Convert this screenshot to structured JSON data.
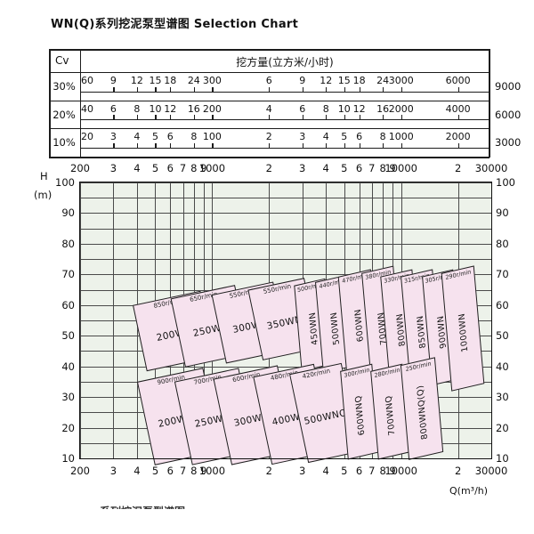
{
  "title": "WN(Q)系列挖泥泵型谱图  Selection Chart",
  "bottom_partial": "系列挖泥泵型谱图",
  "colors": {
    "panel_fill": "#f6e2ee",
    "panel_border": "#1f1f1f",
    "plot_bg": "#edf2ea",
    "grid": "#4a4a4a",
    "ink": "#111111"
  },
  "table": {
    "col_header": "Cv",
    "main_header": "挖方量(立方米/小时)",
    "rows": [
      {
        "label": "30%",
        "outside": "9000",
        "cells": [
          {
            "q": 200,
            "t": "60"
          },
          {
            "q": 300,
            "t": "9"
          },
          {
            "q": 400,
            "t": "12"
          },
          {
            "q": 500,
            "t": "15"
          },
          {
            "q": 600,
            "t": "18"
          },
          {
            "q": 800,
            "t": "24"
          },
          {
            "q": 1000,
            "t": "300"
          },
          {
            "q": 2000,
            "t": "6"
          },
          {
            "q": 3000,
            "t": "9"
          },
          {
            "q": 4000,
            "t": "12"
          },
          {
            "q": 5000,
            "t": "15"
          },
          {
            "q": 6000,
            "t": "18"
          },
          {
            "q": 8000,
            "t": "24"
          },
          {
            "q": 10000,
            "t": "3000"
          },
          {
            "q": 20000,
            "t": "6000"
          }
        ]
      },
      {
        "label": "20%",
        "outside": "6000",
        "cells": [
          {
            "q": 200,
            "t": "40"
          },
          {
            "q": 300,
            "t": "6"
          },
          {
            "q": 400,
            "t": "8"
          },
          {
            "q": 500,
            "t": "10"
          },
          {
            "q": 600,
            "t": "12"
          },
          {
            "q": 800,
            "t": "16"
          },
          {
            "q": 1000,
            "t": "200"
          },
          {
            "q": 2000,
            "t": "4"
          },
          {
            "q": 3000,
            "t": "6"
          },
          {
            "q": 4000,
            "t": "8"
          },
          {
            "q": 5000,
            "t": "10"
          },
          {
            "q": 6000,
            "t": "12"
          },
          {
            "q": 8000,
            "t": "16"
          },
          {
            "q": 10000,
            "t": "2000"
          },
          {
            "q": 20000,
            "t": "4000"
          }
        ]
      },
      {
        "label": "10%",
        "outside": "3000",
        "cells": [
          {
            "q": 200,
            "t": "20"
          },
          {
            "q": 300,
            "t": "3"
          },
          {
            "q": 400,
            "t": "4"
          },
          {
            "q": 500,
            "t": "5"
          },
          {
            "q": 600,
            "t": "6"
          },
          {
            "q": 800,
            "t": "8"
          },
          {
            "q": 1000,
            "t": "100"
          },
          {
            "q": 2000,
            "t": "2"
          },
          {
            "q": 3000,
            "t": "3"
          },
          {
            "q": 4000,
            "t": "4"
          },
          {
            "q": 5000,
            "t": "5"
          },
          {
            "q": 6000,
            "t": "6"
          },
          {
            "q": 8000,
            "t": "8"
          },
          {
            "q": 10000,
            "t": "1000"
          },
          {
            "q": 20000,
            "t": "2000"
          }
        ]
      }
    ]
  },
  "axes": {
    "x_label": "Q(m³/h)",
    "y_label_line1": "H",
    "y_label_line2": "(m)",
    "x_ticks": [
      {
        "q": 200,
        "t": "200"
      },
      {
        "q": 300,
        "t": "3"
      },
      {
        "q": 400,
        "t": "4"
      },
      {
        "q": 500,
        "t": "5"
      },
      {
        "q": 600,
        "t": "6"
      },
      {
        "q": 700,
        "t": "7"
      },
      {
        "q": 800,
        "t": "8"
      },
      {
        "q": 900,
        "t": "9"
      },
      {
        "q": 1000,
        "t": "1000"
      },
      {
        "q": 2000,
        "t": "2"
      },
      {
        "q": 3000,
        "t": "3"
      },
      {
        "q": 4000,
        "t": "4"
      },
      {
        "q": 5000,
        "t": "5"
      },
      {
        "q": 6000,
        "t": "6"
      },
      {
        "q": 7000,
        "t": "7"
      },
      {
        "q": 8000,
        "t": "8"
      },
      {
        "q": 9000,
        "t": "9"
      },
      {
        "q": 10000,
        "t": "10000"
      },
      {
        "q": 20000,
        "t": "2"
      },
      {
        "q": 30000,
        "t": "30000"
      }
    ],
    "y_ticks": [
      "100",
      "90",
      "80",
      "70",
      "60",
      "50",
      "40",
      "30",
      "20",
      "10"
    ]
  },
  "chart_data": {
    "type": "area",
    "title": "WN(Q)系列挖泥泵型谱图 Selection Chart",
    "x_axis": {
      "label": "Q(m³/h)",
      "scale": "log",
      "range": [
        200,
        30000
      ]
    },
    "y_axis": {
      "label": "H (m)",
      "scale": "linear",
      "range": [
        10,
        100
      ],
      "minor_step": 5
    },
    "legend_position": "none",
    "grid": true,
    "series": [
      {
        "model": "200WN",
        "speed": "850r/min",
        "q_range": [
          400,
          950
        ],
        "h_range": [
          41,
          63
        ],
        "narrow": false,
        "row": "WN"
      },
      {
        "model": "250WN",
        "speed": "650r/min",
        "q_range": [
          640,
          1450
        ],
        "h_range": [
          42,
          65
        ],
        "narrow": false,
        "row": "WN"
      },
      {
        "model": "300WN",
        "speed": "550r/min",
        "q_range": [
          1050,
          2300
        ],
        "h_range": [
          43,
          66
        ],
        "narrow": false,
        "row": "WN"
      },
      {
        "model": "350WN",
        "speed": "550r/min",
        "q_range": [
          1650,
          3400
        ],
        "h_range": [
          44,
          67.5
        ],
        "narrow": false,
        "row": "WN"
      },
      {
        "model": "450WN",
        "speed": "500r/min",
        "q_range": [
          2700,
          4300
        ],
        "h_range": [
          40,
          68
        ],
        "narrow": true,
        "row": "WN"
      },
      {
        "model": "500WN",
        "speed": "440r/min",
        "q_range": [
          3500,
          5700
        ],
        "h_range": [
          39,
          69
        ],
        "narrow": true,
        "row": "WN"
      },
      {
        "model": "600WN",
        "speed": "470r/min",
        "q_range": [
          4600,
          7500
        ],
        "h_range": [
          39,
          71
        ],
        "narrow": true,
        "row": "WN"
      },
      {
        "model": "700WN",
        "speed": "380r/min",
        "q_range": [
          6200,
          10000
        ],
        "h_range": [
          36,
          72
        ],
        "narrow": true,
        "row": "WN"
      },
      {
        "model": "800WN",
        "speed": "330r/min",
        "q_range": [
          7800,
          12500
        ],
        "h_range": [
          36,
          71
        ],
        "narrow": true,
        "row": "WN"
      },
      {
        "model": "850WN",
        "speed": "315r/min",
        "q_range": [
          10000,
          16000
        ],
        "h_range": [
          35,
          71
        ],
        "narrow": true,
        "row": "WN"
      },
      {
        "model": "900WN",
        "speed": "305r/min",
        "q_range": [
          13000,
          20500
        ],
        "h_range": [
          35,
          71
        ],
        "narrow": true,
        "row": "WN"
      },
      {
        "model": "1000WN",
        "speed": "290r/min",
        "q_range": [
          16500,
          27000
        ],
        "h_range": [
          33,
          72
        ],
        "narrow": true,
        "row": "WN"
      },
      {
        "model": "200WNQ",
        "speed": "900r/min",
        "q_range": [
          430,
          1000
        ],
        "h_range": [
          10,
          38
        ],
        "narrow": false,
        "row": "WNQ"
      },
      {
        "model": "250WNQ",
        "speed": "700r/min",
        "q_range": [
          680,
          1550
        ],
        "h_range": [
          10,
          38
        ],
        "narrow": false,
        "row": "WNQ"
      },
      {
        "model": "300WNQ",
        "speed": "600r/min",
        "q_range": [
          1100,
          2500
        ],
        "h_range": [
          10,
          39
        ],
        "narrow": false,
        "row": "WNQ"
      },
      {
        "model": "400WNQ",
        "speed": "480r/min",
        "q_range": [
          1800,
          3900
        ],
        "h_range": [
          10,
          39.5
        ],
        "narrow": false,
        "row": "WNQ"
      },
      {
        "model": "500WNQ",
        "speed": "420r/min",
        "q_range": [
          2800,
          5400
        ],
        "h_range": [
          10,
          40
        ],
        "narrow": false,
        "row": "WNQ"
      },
      {
        "model": "600WNQ",
        "speed": "300r/min",
        "q_range": [
          4700,
          7600
        ],
        "h_range": [
          11,
          40
        ],
        "narrow": true,
        "row": "WNQ"
      },
      {
        "model": "700WNQ",
        "speed": "280r/min",
        "q_range": [
          6800,
          11000
        ],
        "h_range": [
          11,
          40
        ],
        "narrow": true,
        "row": "WNQ"
      },
      {
        "model": "800WNQ(Q)",
        "speed": "250r/min",
        "q_range": [
          9800,
          16500
        ],
        "h_range": [
          11,
          42
        ],
        "narrow": true,
        "row": "WNQ"
      }
    ]
  }
}
